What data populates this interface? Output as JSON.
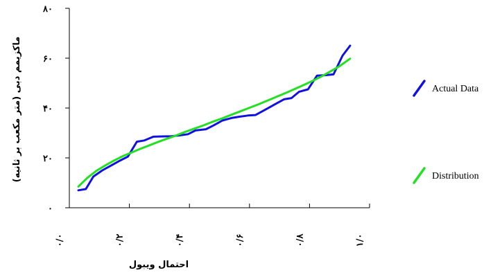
{
  "chart_data": {
    "type": "line",
    "xlabel": "احتمال ویبول",
    "ylabel": "ماکزیمم دبی (متر مکعب بر ثانیه)",
    "xlim": [
      0,
      1.0
    ],
    "ylim": [
      0,
      80
    ],
    "x_ticks": [
      {
        "value": 0.0,
        "label": "٠/٠"
      },
      {
        "value": 0.2,
        "label": "٠/٢"
      },
      {
        "value": 0.4,
        "label": "٠/۴"
      },
      {
        "value": 0.6,
        "label": "٠/۶"
      },
      {
        "value": 0.8,
        "label": "٠/٨"
      },
      {
        "value": 1.0,
        "label": "١/٠"
      }
    ],
    "y_ticks": [
      {
        "value": 0,
        "label": "٠"
      },
      {
        "value": 20,
        "label": "٢٠"
      },
      {
        "value": 40,
        "label": "۴٠"
      },
      {
        "value": 60,
        "label": "۶٠"
      },
      {
        "value": 80,
        "label": "٨٠"
      }
    ],
    "legend_position": "right",
    "series": [
      {
        "name": "Actual Data",
        "color": "#1010e0",
        "points": [
          [
            0.03,
            7.0
          ],
          [
            0.055,
            7.5
          ],
          [
            0.08,
            12.5
          ],
          [
            0.11,
            15.0
          ],
          [
            0.14,
            17.0
          ],
          [
            0.17,
            19.0
          ],
          [
            0.195,
            20.5
          ],
          [
            0.225,
            26.5
          ],
          [
            0.25,
            27.0
          ],
          [
            0.28,
            28.5
          ],
          [
            0.31,
            28.6
          ],
          [
            0.34,
            28.7
          ],
          [
            0.365,
            29.0
          ],
          [
            0.395,
            29.5
          ],
          [
            0.42,
            31.0
          ],
          [
            0.455,
            31.5
          ],
          [
            0.48,
            33.0
          ],
          [
            0.51,
            35.0
          ],
          [
            0.54,
            36.0
          ],
          [
            0.565,
            36.5
          ],
          [
            0.595,
            37.0
          ],
          [
            0.62,
            37.2
          ],
          [
            0.655,
            39.5
          ],
          [
            0.685,
            41.5
          ],
          [
            0.715,
            43.5
          ],
          [
            0.74,
            44.0
          ],
          [
            0.765,
            46.5
          ],
          [
            0.795,
            47.5
          ],
          [
            0.825,
            53.0
          ],
          [
            0.855,
            53.2
          ],
          [
            0.88,
            53.5
          ],
          [
            0.91,
            61.0
          ],
          [
            0.935,
            65.0
          ]
        ]
      },
      {
        "name": "Distribution",
        "color": "#22e022",
        "points": [
          [
            0.03,
            8.5
          ],
          [
            0.06,
            12.0
          ],
          [
            0.09,
            14.8
          ],
          [
            0.12,
            17.0
          ],
          [
            0.15,
            19.0
          ],
          [
            0.18,
            20.8
          ],
          [
            0.21,
            22.3
          ],
          [
            0.24,
            23.8
          ],
          [
            0.27,
            25.2
          ],
          [
            0.3,
            26.6
          ],
          [
            0.33,
            27.9
          ],
          [
            0.36,
            29.2
          ],
          [
            0.39,
            30.6
          ],
          [
            0.42,
            31.9
          ],
          [
            0.45,
            33.2
          ],
          [
            0.48,
            34.6
          ],
          [
            0.51,
            35.9
          ],
          [
            0.54,
            37.3
          ],
          [
            0.57,
            38.7
          ],
          [
            0.6,
            40.1
          ],
          [
            0.63,
            41.5
          ],
          [
            0.66,
            43.0
          ],
          [
            0.69,
            44.5
          ],
          [
            0.72,
            46.0
          ],
          [
            0.75,
            47.6
          ],
          [
            0.78,
            49.2
          ],
          [
            0.81,
            50.9
          ],
          [
            0.84,
            52.7
          ],
          [
            0.87,
            54.7
          ],
          [
            0.9,
            56.8
          ],
          [
            0.935,
            59.8
          ]
        ]
      }
    ]
  }
}
